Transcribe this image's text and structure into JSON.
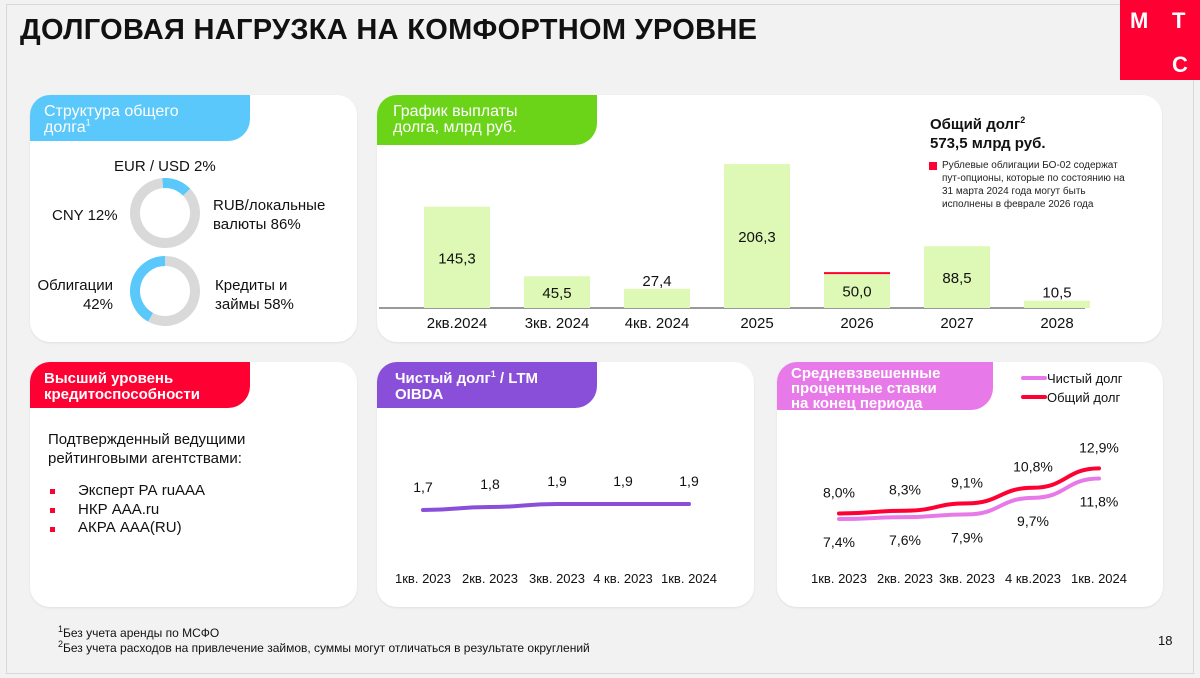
{
  "title": "ДОЛГОВАЯ НАГРУЗКА НА КОМФОРТНОМ УРОВНЕ",
  "logo": {
    "l1": "М",
    "l2": "Т",
    "l3": "С"
  },
  "structure": {
    "tag_line1": "Структура общего",
    "tag_line2": "долга",
    "tag_sup": "1",
    "currency": {
      "top_label": "EUR / USD 2%",
      "left_label": "CNY 12%",
      "right_line1": "RUB/локальные",
      "right_line2": "валюты 86%"
    },
    "instrument": {
      "left_line1": "Облигации",
      "left_line2": "42%",
      "right_line1": "Кредиты и",
      "right_line2": "займы 58%"
    }
  },
  "repayment": {
    "tag_line1": "График выплаты",
    "tag_line2": "долга, млрд руб.",
    "total_line1": "Общий долг",
    "total_sup": "2",
    "total_line2": "573,5 млрд руб.",
    "note_line1": "Рублевые облигации БО-02 содержат",
    "note_line2": "пут-опционы, которые по состоянию на",
    "note_line3": "31 марта 2024 года могут быть",
    "note_line4": "исполнены в феврале 2026 года"
  },
  "rating": {
    "tag_line1": "Высший уровень",
    "tag_line2": "кредитоспособности",
    "intro_line1": "Подтвержденный ведущими",
    "intro_line2": "рейтинговыми агентствами:",
    "items": [
      "Эксперт РА ruAAA",
      "НКР AAA.ru",
      "АКРА AAA(RU)"
    ]
  },
  "netdebt": {
    "tag_line1": "Чистый долг",
    "tag_sup": "1",
    "tag_rest": " / LTM",
    "tag_line2": "OIBDA"
  },
  "rates": {
    "tag_line1": "Средневзвешенные",
    "tag_line2": "процентные ставки",
    "tag_line3": "на конец периода"
  },
  "footnotes": {
    "f1_sup": "1",
    "f1": "Без учета аренды по МСФО",
    "f2_sup": "2",
    "f2": "Без учета расходов на привлечение займов, суммы могут отличаться в результате округлений"
  },
  "page_number": "18",
  "colors": {
    "red": "#ff0032",
    "blue": "#5ac8fa",
    "green": "#6cd418",
    "bar": "#ddf9b5",
    "purple": "#8a4fd8",
    "pink": "#e77ae8",
    "gray": "#d9d9d9"
  },
  "chart_data": [
    {
      "id": "currency_donut",
      "type": "pie",
      "title": "Структура общего долга (валюта)",
      "categories": [
        "RUB/локальные валюты",
        "CNY",
        "EUR / USD"
      ],
      "values": [
        86,
        12,
        2
      ],
      "unit": "%"
    },
    {
      "id": "instrument_donut",
      "type": "pie",
      "title": "Структура общего долга (инструменты)",
      "categories": [
        "Кредиты и займы",
        "Облигации"
      ],
      "values": [
        58,
        42
      ],
      "unit": "%"
    },
    {
      "id": "repayment",
      "type": "bar",
      "title": "График выплаты долга, млрд руб.",
      "categories": [
        "2кв.2024",
        "3кв. 2024",
        "4кв. 2024",
        "2025",
        "2026",
        "2027",
        "2028"
      ],
      "values": [
        145.3,
        45.5,
        27.4,
        206.3,
        50.0,
        88.5,
        10.5
      ],
      "value_labels": [
        "145,3",
        "45,5",
        "27,4",
        "206,3",
        "50,0",
        "88,5",
        "10,5"
      ],
      "highlight": {
        "category": "2026",
        "value": 1.5,
        "note": "Рублевые облигации БО-02"
      },
      "ylim": [
        0,
        215
      ]
    },
    {
      "id": "net_debt_oibda",
      "type": "line",
      "title": "Чистый долг / LTM OIBDA",
      "categories": [
        "1кв. 2023",
        "2кв. 2023",
        "3кв. 2023",
        "4 кв. 2023",
        "1кв. 2024"
      ],
      "values": [
        1.7,
        1.8,
        1.9,
        1.9,
        1.9
      ],
      "value_labels": [
        "1,7",
        "1,8",
        "1,9",
        "1,9",
        "1,9"
      ],
      "ylim": [
        0,
        3
      ]
    },
    {
      "id": "interest_rates",
      "type": "line",
      "title": "Средневзвешенные процентные ставки на конец периода",
      "categories": [
        "1кв. 2023",
        "2кв. 2023",
        "3кв. 2023",
        "4 кв.2023",
        "1кв. 2024"
      ],
      "series": [
        {
          "name": "Чистый долг",
          "values": [
            7.4,
            7.6,
            7.9,
            9.7,
            11.8
          ],
          "labels": [
            "7,4%",
            "7,6%",
            "7,9%",
            "9,7%",
            "11,8%"
          ]
        },
        {
          "name": "Общий долг",
          "values": [
            8.0,
            8.3,
            9.1,
            10.8,
            12.9
          ],
          "labels": [
            "8,0%",
            "8,3%",
            "9,1%",
            "10,8%",
            "12,9%"
          ]
        }
      ],
      "ylim": [
        6,
        14
      ]
    }
  ]
}
